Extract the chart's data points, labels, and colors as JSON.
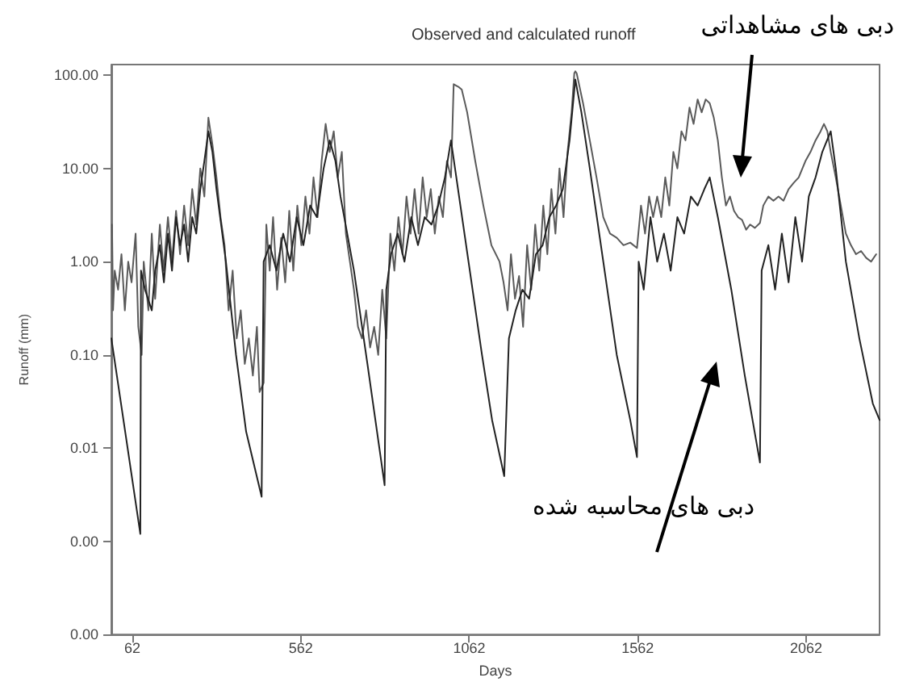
{
  "chart_data": {
    "type": "line",
    "title": "Observed and calculated runoff",
    "xlabel": "Days",
    "ylabel": "Runoff (mm)",
    "annotations": [
      "دبی های مشاهداتی",
      "دبی های محاسبه شده"
    ],
    "log": "y",
    "grid": false,
    "xlim": [
      0,
      2280
    ],
    "xticks": [
      62,
      562,
      1062,
      1562,
      2062
    ],
    "ylim": [
      0.0001,
      130
    ],
    "yticks": [
      {
        "value": 0.0001,
        "label": "0.00"
      },
      {
        "value": 0.001,
        "label": "0.00"
      },
      {
        "value": 0.01,
        "label": "0.01"
      },
      {
        "value": 0.1,
        "label": "0.10"
      },
      {
        "value": 1,
        "label": "1.00"
      },
      {
        "value": 10,
        "label": "10.00"
      },
      {
        "value": 100,
        "label": "100.00"
      }
    ],
    "series": [
      {
        "color": "#5a5a5a",
        "x": [
          2,
          5,
          10,
          20,
          30,
          40,
          50,
          60,
          72,
          80,
          90,
          96,
          110,
          120,
          130,
          144,
          155,
          168,
          180,
          192,
          204,
          216,
          228,
          240,
          252,
          264,
          276,
          288,
          300,
          312,
          324,
          336,
          348,
          360,
          372,
          384,
          396,
          408,
          420,
          432,
          440,
          452,
          460,
          470,
          480,
          492,
          504,
          516,
          528,
          540,
          552,
          564,
          576,
          588,
          600,
          612,
          624,
          636,
          648,
          660,
          672,
          684,
          696,
          708,
          720,
          732,
          744,
          756,
          768,
          780,
          792,
          804,
          816,
          828,
          840,
          852,
          864,
          876,
          888,
          900,
          912,
          924,
          936,
          948,
          960,
          972,
          984,
          996,
          1008,
          1016,
          1030,
          1040,
          1056,
          1080,
          1104,
          1128,
          1152,
          1164,
          1176,
          1186,
          1198,
          1210,
          1222,
          1234,
          1246,
          1258,
          1270,
          1282,
          1294,
          1306,
          1318,
          1330,
          1342,
          1354,
          1366,
          1374,
          1377,
          1381,
          1388,
          1400,
          1420,
          1440,
          1460,
          1480,
          1500,
          1520,
          1540,
          1560,
          1572,
          1584,
          1596,
          1608,
          1620,
          1632,
          1644,
          1656,
          1668,
          1680,
          1692,
          1704,
          1716,
          1728,
          1740,
          1752,
          1764,
          1776,
          1788,
          1800,
          1812,
          1824,
          1836,
          1848,
          1860,
          1872,
          1884,
          1896,
          1910,
          1925,
          1935,
          1950,
          1965,
          1980,
          1995,
          2010,
          2025,
          2040,
          2060,
          2075,
          2090,
          2105,
          2115,
          2125,
          2135,
          2150,
          2165,
          2180,
          2195,
          2210,
          2225,
          2240,
          2255,
          2270
        ],
        "values": [
          2.5,
          0.3,
          0.8,
          0.5,
          1.2,
          0.3,
          1.0,
          0.6,
          2.0,
          0.2,
          0.1,
          1.0,
          0.3,
          2.0,
          0.4,
          2.5,
          0.8,
          3.0,
          1.0,
          3.5,
          1.2,
          4.0,
          1.5,
          6,
          2.5,
          10,
          5,
          35,
          18,
          8,
          3,
          1.5,
          0.3,
          0.8,
          0.15,
          0.3,
          0.08,
          0.15,
          0.06,
          0.2,
          0.04,
          0.05,
          2.5,
          0.8,
          3,
          0.5,
          1.8,
          0.6,
          3.5,
          0.8,
          4,
          1.5,
          5,
          2,
          8,
          3,
          12,
          30,
          15,
          25,
          8,
          15,
          2,
          1,
          0.5,
          0.2,
          0.15,
          0.3,
          0.12,
          0.2,
          0.1,
          0.5,
          0.15,
          2,
          0.8,
          3,
          1.2,
          5,
          2,
          6,
          2,
          8,
          3,
          6,
          2,
          5,
          3,
          12,
          8,
          80,
          75,
          70,
          40,
          12,
          4,
          1.5,
          1,
          0.6,
          0.3,
          1.2,
          0.4,
          0.7,
          0.2,
          1.5,
          0.5,
          2.5,
          0.8,
          4,
          1.2,
          6,
          2,
          10,
          3,
          15,
          40,
          105,
          110,
          105,
          80,
          50,
          20,
          8,
          3,
          2,
          1.8,
          1.5,
          1.6,
          1.4,
          4,
          2,
          5,
          3,
          5,
          3,
          8,
          4,
          15,
          10,
          25,
          20,
          45,
          30,
          55,
          40,
          55,
          50,
          35,
          20,
          8,
          4,
          5,
          3.5,
          3,
          2.8,
          2.2,
          2.5,
          2.3,
          2.6,
          4,
          5,
          4.5,
          5,
          4.5,
          6,
          7,
          8,
          12,
          15,
          20,
          25,
          30,
          25,
          15,
          8,
          4,
          2,
          1.5,
          1.2,
          1.3,
          1.1,
          1.0,
          1.2
        ]
      },
      {
        "color": "#222222",
        "x": [
          0,
          86,
          88,
          100,
          120,
          130,
          144,
          156,
          168,
          180,
          192,
          204,
          216,
          228,
          240,
          252,
          264,
          276,
          288,
          300,
          312,
          340,
          370,
          400,
          446,
          452,
          470,
          490,
          510,
          530,
          550,
          570,
          590,
          610,
          630,
          648,
          665,
          680,
          720,
          760,
          811,
          816,
          830,
          850,
          870,
          890,
          910,
          930,
          950,
          970,
          990,
          1008,
          1020,
          1060,
          1100,
          1130,
          1166,
          1180,
          1200,
          1220,
          1240,
          1260,
          1280,
          1300,
          1320,
          1340,
          1360,
          1377,
          1395,
          1420,
          1460,
          1500,
          1540,
          1560,
          1565,
          1580,
          1600,
          1620,
          1640,
          1660,
          1680,
          1700,
          1720,
          1740,
          1760,
          1776,
          1800,
          1840,
          1880,
          1925,
          1930,
          1950,
          1970,
          1990,
          2010,
          2030,
          2050,
          2070,
          2090,
          2110,
          2135,
          2150,
          2180,
          2220,
          2260,
          2280
        ],
        "values": [
          0.15,
          0.0012,
          0.8,
          0.5,
          0.3,
          0.8,
          1.5,
          0.6,
          2,
          0.8,
          3,
          1.5,
          2.5,
          1,
          3,
          2,
          6,
          12,
          25,
          15,
          6,
          1,
          0.1,
          0.015,
          0.003,
          1,
          1.5,
          0.8,
          2,
          1,
          3,
          1.5,
          4,
          3,
          10,
          20,
          12,
          5,
          0.8,
          0.08,
          0.004,
          0.5,
          1.2,
          2,
          1,
          3,
          1.5,
          3,
          2.5,
          4,
          8,
          20,
          10,
          1,
          0.1,
          0.02,
          0.005,
          0.15,
          0.3,
          0.5,
          0.4,
          1.2,
          1.5,
          3,
          4,
          6,
          20,
          90,
          40,
          10,
          1,
          0.1,
          0.02,
          0.008,
          1,
          0.5,
          3,
          1,
          2,
          0.8,
          3,
          2,
          5,
          4,
          6,
          8,
          3,
          0.5,
          0.06,
          0.007,
          0.8,
          1.5,
          0.5,
          2,
          0.6,
          3,
          1,
          5,
          8,
          15,
          25,
          10,
          1,
          0.15,
          0.03,
          0.02
        ]
      }
    ]
  }
}
